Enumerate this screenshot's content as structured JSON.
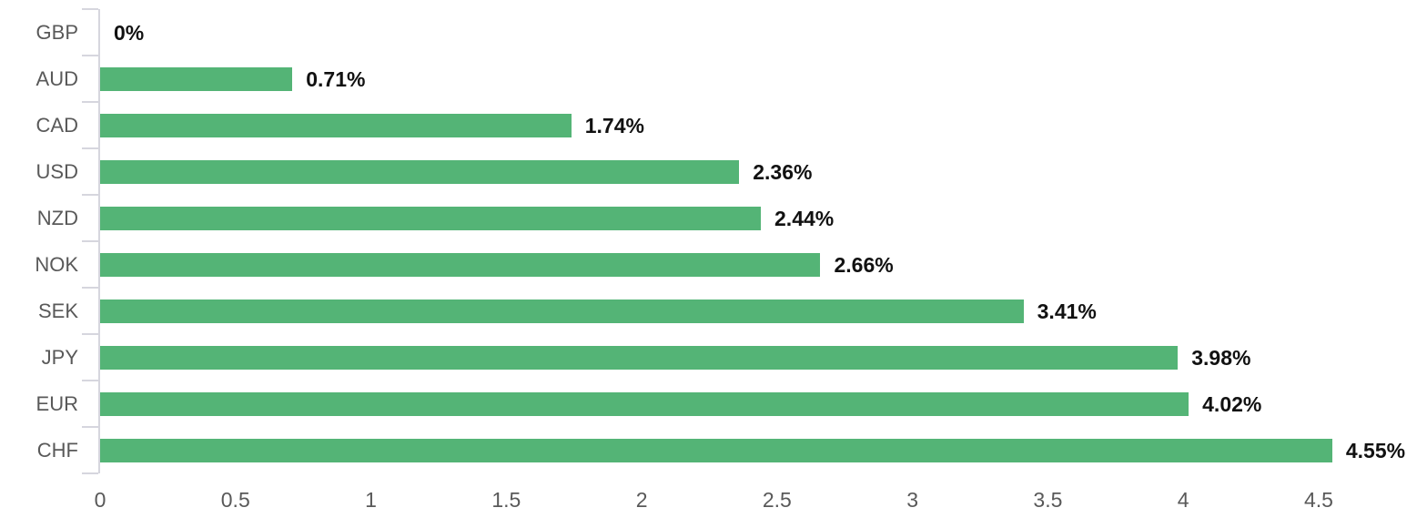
{
  "chart_data": {
    "type": "bar",
    "orientation": "horizontal",
    "title": "",
    "xlabel": "",
    "ylabel": "",
    "grid": false,
    "legend": "none",
    "categories": [
      "GBP",
      "AUD",
      "CAD",
      "USD",
      "NZD",
      "NOK",
      "SEK",
      "JPY",
      "EUR",
      "CHF"
    ],
    "values": [
      0,
      0.71,
      1.74,
      2.36,
      2.44,
      2.66,
      3.41,
      3.98,
      4.02,
      4.55
    ],
    "value_labels": [
      "0%",
      "0.71%",
      "1.74%",
      "2.36%",
      "2.44%",
      "2.66%",
      "3.41%",
      "3.98%",
      "4.02%",
      "4.55%"
    ],
    "x_ticks": [
      0,
      0.5,
      1,
      1.5,
      2,
      2.5,
      3,
      3.5,
      4,
      4.5
    ],
    "x_tick_labels": [
      "0",
      "0.5",
      "1",
      "1.5",
      "2",
      "2.5",
      "3",
      "3.5",
      "4",
      "4.5"
    ],
    "xlim": [
      0,
      4.9
    ],
    "colors": {
      "bar": "#54b476",
      "axis": "#d6d6de",
      "category_label": "#595959",
      "tick_label": "#595959",
      "value_label": "#111111"
    }
  }
}
